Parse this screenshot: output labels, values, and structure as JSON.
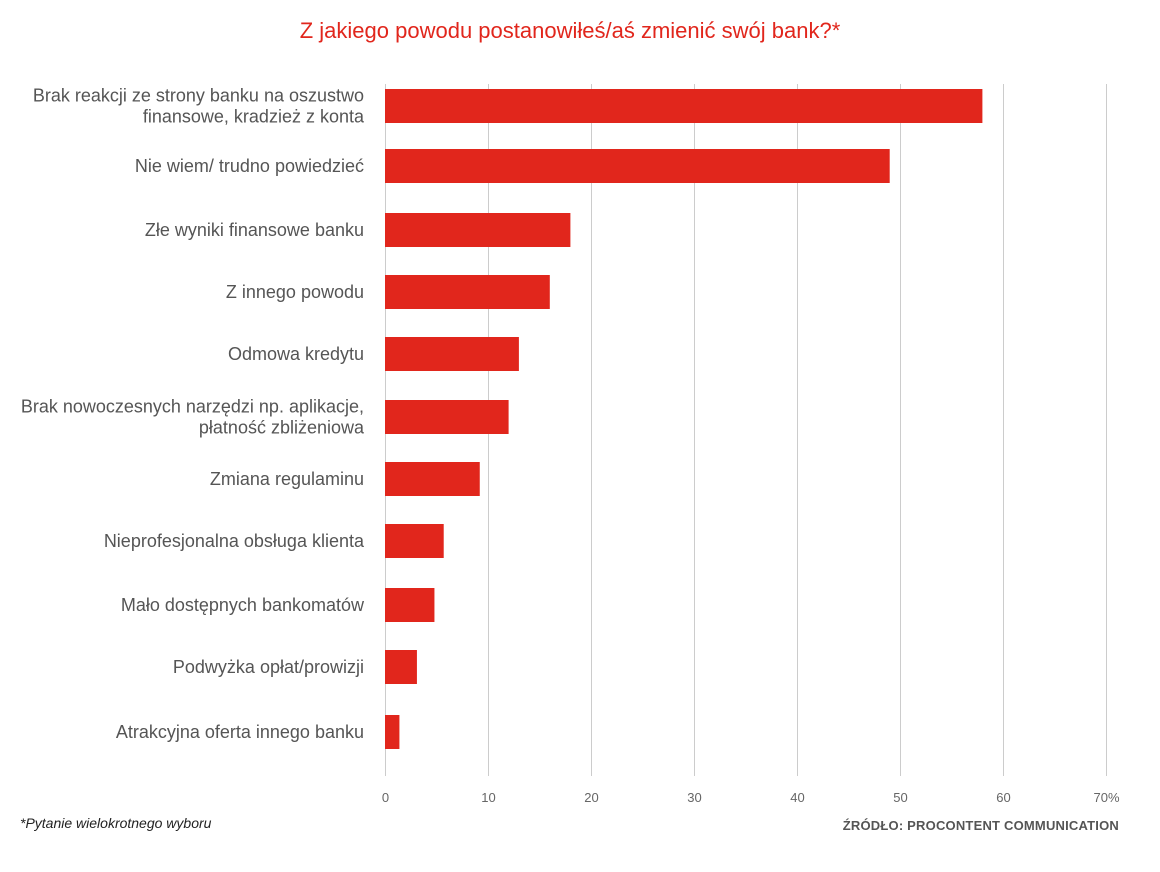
{
  "chart_data": {
    "type": "bar",
    "orientation": "horizontal",
    "title": "Z jakiego powodu postanowiłeś/aś zmienić swój bank?*",
    "categories": [
      [
        "Brak reakcji ze strony banku na oszustwo",
        "finansowe, kradzież z konta"
      ],
      [
        "Nie wiem/ trudno powiedzieć"
      ],
      [
        "Złe wyniki finansowe banku"
      ],
      [
        "Z innego powodu"
      ],
      [
        "Odmowa kredytu"
      ],
      [
        "Brak nowoczesnych narzędzi np. aplikacje,",
        "płatność zbliżeniowa"
      ],
      [
        "Zmiana regulaminu"
      ],
      [
        "Nieprofesjonalna obsługa klienta"
      ],
      [
        "Mało dostępnych bankomatów"
      ],
      [
        "Podwyżka opłat/prowizji"
      ],
      [
        "Atrakcyjna oferta innego banku"
      ]
    ],
    "values": [
      58,
      49,
      18,
      16,
      13,
      12,
      9.2,
      5.7,
      4.8,
      3.1,
      1.4
    ],
    "xlim": [
      0,
      70
    ],
    "xticks": [
      "0",
      "10",
      "20",
      "30",
      "40",
      "50",
      "60",
      "70%"
    ],
    "grid": "vertical",
    "bar_color": "#e1261c",
    "grid_color": "#cccccc"
  },
  "footnote": "*Pytanie wielokrotnego wyboru",
  "source": "ŹRÓDŁO: PROCONTENT COMMUNICATION"
}
